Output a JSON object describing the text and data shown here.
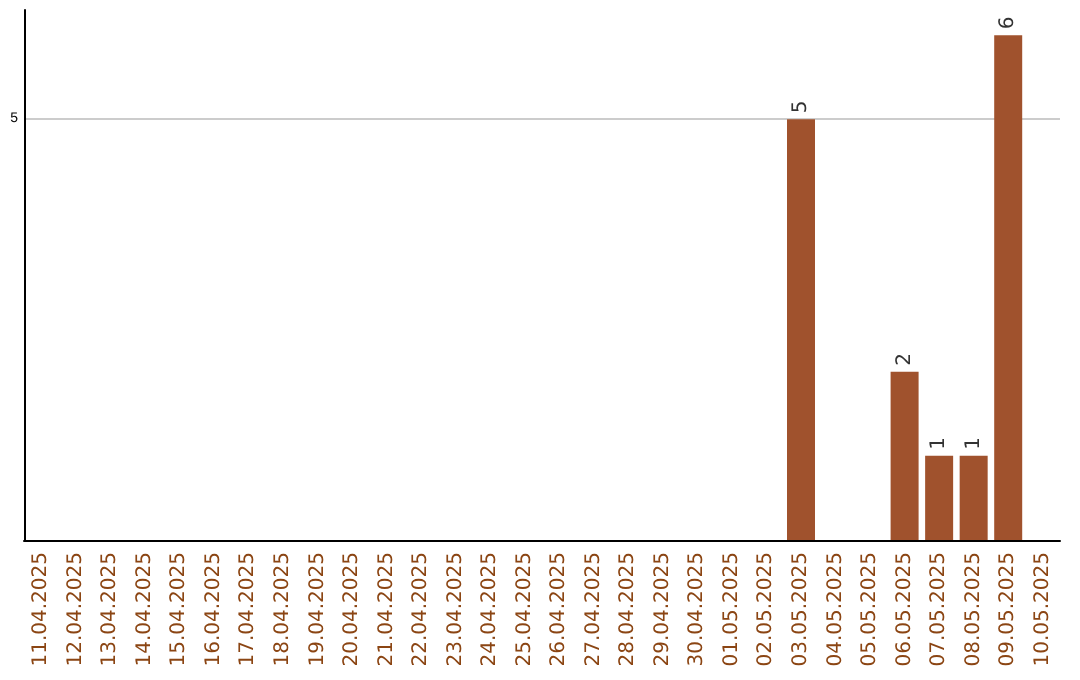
{
  "chart_data": {
    "type": "bar",
    "categories": [
      "11.04.2025",
      "12.04.2025",
      "13.04.2025",
      "14.04.2025",
      "15.04.2025",
      "16.04.2025",
      "17.04.2025",
      "18.04.2025",
      "19.04.2025",
      "20.04.2025",
      "21.04.2025",
      "22.04.2025",
      "23.04.2025",
      "24.04.2025",
      "25.04.2025",
      "26.04.2025",
      "27.04.2025",
      "28.04.2025",
      "29.04.2025",
      "30.04.2025",
      "01.05.2025",
      "02.05.2025",
      "03.05.2025",
      "04.05.2025",
      "05.05.2025",
      "06.05.2025",
      "07.05.2025",
      "08.05.2025",
      "09.05.2025",
      "10.05.2025"
    ],
    "values": [
      null,
      null,
      null,
      null,
      null,
      null,
      null,
      null,
      null,
      null,
      null,
      null,
      null,
      null,
      null,
      null,
      null,
      null,
      null,
      null,
      null,
      null,
      5,
      null,
      null,
      2,
      1,
      1,
      6,
      null
    ],
    "data_labels": true,
    "color": "#a0522d",
    "ylim": [
      0,
      6.3
    ],
    "yticks": [
      5
    ],
    "grid": "y"
  }
}
